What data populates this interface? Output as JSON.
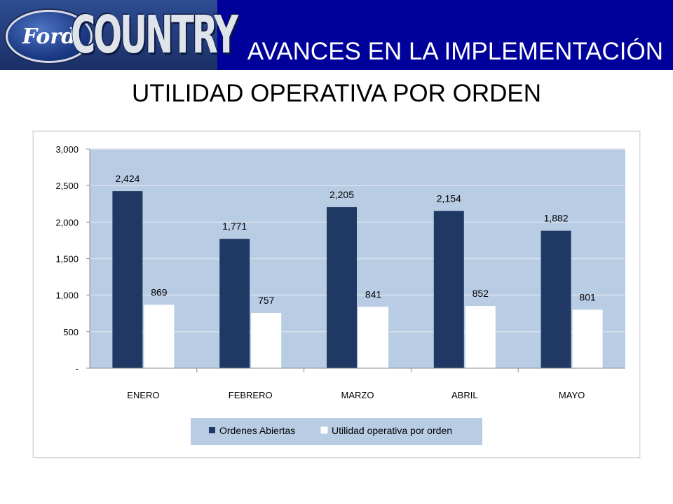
{
  "header": {
    "logo_ford": "Ford",
    "logo_country": "COUNTRY",
    "title": "AVANCES EN LA IMPLEMENTACIÓN"
  },
  "slide_title": "UTILIDAD OPERATIVA POR ORDEN",
  "colors": {
    "header_bg": "#00009a",
    "plot_bg": "#b8cce4",
    "series_1": "#1f3864",
    "series_2": "#ffffff"
  },
  "chart_data": {
    "type": "bar",
    "title": "",
    "xlabel": "",
    "ylabel": "",
    "categories": [
      "ENERO",
      "FEBRERO",
      "MARZO",
      "ABRIL",
      "MAYO"
    ],
    "series": [
      {
        "name": "Ordenes Abiertas",
        "values": [
          2424,
          1771,
          2205,
          2154,
          1882
        ],
        "labels": [
          "2,424",
          "1,771",
          "2,205",
          "2,154",
          "1,882"
        ]
      },
      {
        "name": "Utilidad operativa por orden",
        "values": [
          869,
          757,
          841,
          852,
          801
        ],
        "labels": [
          "869",
          "757",
          "841",
          "852",
          "801"
        ]
      }
    ],
    "ylim": [
      0,
      3000
    ],
    "yticks": [
      0,
      500,
      1000,
      1500,
      2000,
      2500,
      3000
    ],
    "ytick_labels": [
      "-",
      "500",
      "1,000",
      "1,500",
      "2,000",
      "2,500",
      "3,000"
    ],
    "grid": true,
    "legend_position": "bottom"
  }
}
